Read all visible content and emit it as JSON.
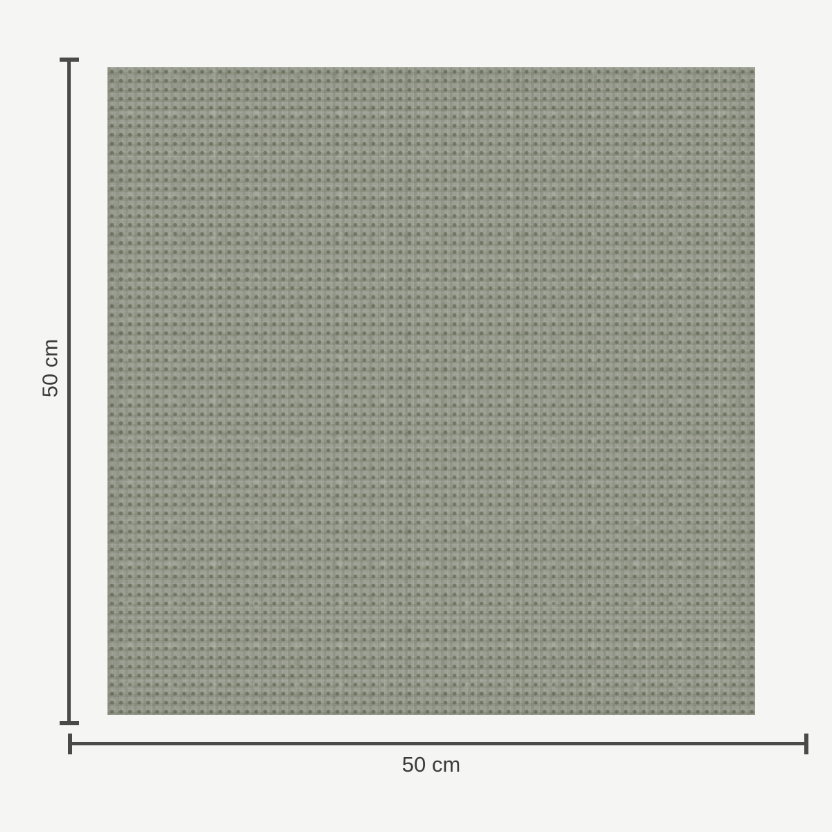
{
  "page": {
    "background_color": "#f5f5f4"
  },
  "diagram": {
    "kind": "fabric-swatch-dimension-diagram",
    "swatch": {
      "texture": "woven-grid",
      "base_color": "#9c9f92",
      "dot_color": "#5f674fb0"
    },
    "dimension_lines": {
      "color": "#4a4a4a",
      "height": {
        "label": "50 cm"
      },
      "width": {
        "label": "50 cm"
      }
    },
    "label_color": "#3b3b3b"
  }
}
